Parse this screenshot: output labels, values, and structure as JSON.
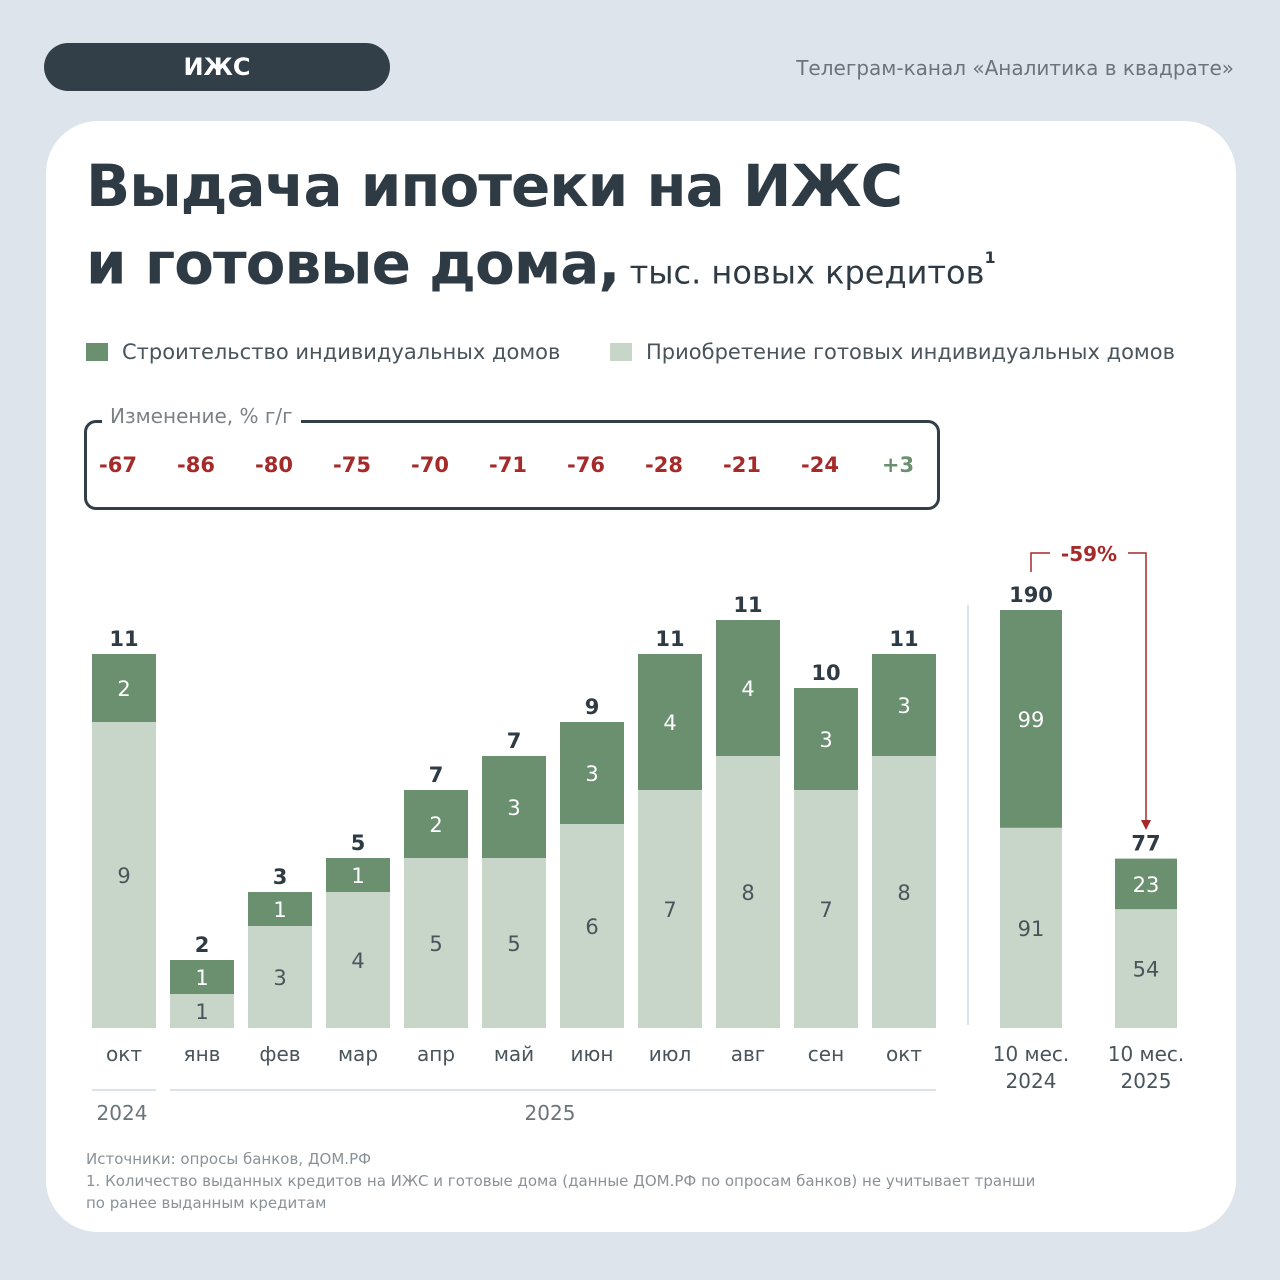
{
  "header": {
    "tag": "ИЖС",
    "channel": "Телеграм-канал «Аналитика в квадрате»"
  },
  "title": {
    "line1": "Выдача ипотеки на ИЖС",
    "line2": "и готовые дома,",
    "unit": " тыс. новых кредитов",
    "footnote_mark": "1"
  },
  "legend": [
    {
      "label": "Строительство индивидуальных домов",
      "color": "#6b9070"
    },
    {
      "label": "Приобретение готовых индивидуальных домов",
      "color": "#c8d6c9"
    }
  ],
  "change_box": {
    "label": "Изменение, % г/г",
    "values": [
      "-67",
      "-86",
      "-80",
      "-75",
      "-70",
      "-71",
      "-76",
      "-28",
      "-21",
      "-24",
      "+3"
    ],
    "neg_color": "#a52a2a",
    "pos_color": "#6b9070"
  },
  "chart_data": {
    "type": "bar",
    "stacked": true,
    "categories": [
      "окт",
      "янв",
      "фев",
      "мар",
      "апр",
      "май",
      "июн",
      "июл",
      "авг",
      "сен",
      "окт"
    ],
    "series": [
      {
        "name": "Приобретение готовых индивидуальных домов",
        "values": [
          9,
          1,
          3,
          4,
          5,
          5,
          6,
          7,
          8,
          7,
          8
        ]
      },
      {
        "name": "Строительство индивидуальных домов",
        "values": [
          2,
          1,
          1,
          1,
          2,
          3,
          3,
          4,
          4,
          3,
          3
        ]
      }
    ],
    "totals": [
      11,
      2,
      3,
      5,
      7,
      7,
      9,
      11,
      11,
      10,
      11
    ],
    "year_labels": [
      "2024",
      "2025"
    ],
    "summary": {
      "categories": [
        [
          "10 мес.",
          "2024"
        ],
        [
          "10 мес.",
          "2025"
        ]
      ],
      "ready": [
        91,
        54
      ],
      "construction": [
        99,
        23
      ],
      "totals": [
        190,
        77
      ],
      "change": "-59%"
    }
  },
  "footer": {
    "source": "Источники: опросы банков, ДОМ.РФ",
    "note1": "1. Количество выданных кредитов на ИЖС и готовые дома (данные ДОМ.РФ по опросам банков) не учитывает транши",
    "note2": "по ранее выданным кредитам"
  }
}
